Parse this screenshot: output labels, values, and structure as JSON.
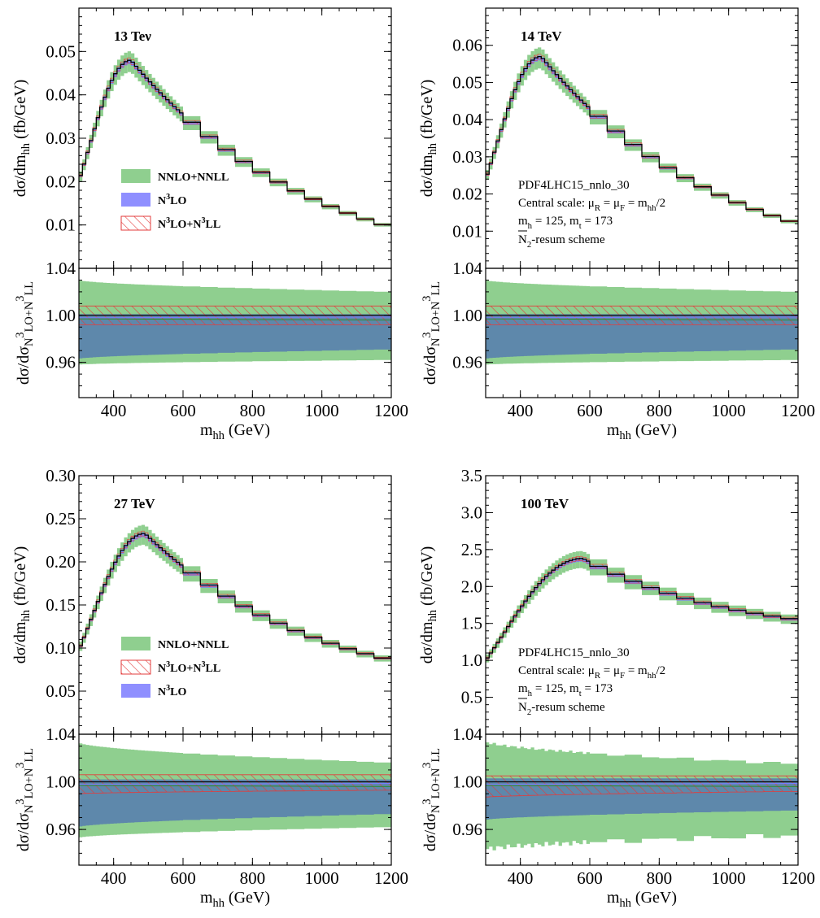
{
  "chart_data": [
    {
      "type": "line",
      "title": "13 Teν",
      "xlabel": "m_hh (GeV)",
      "ylabel": "dσ/dm_hh (fb/GeV)",
      "ratio_ylabel": "dσ/dσ_N3LO+N3LL",
      "xlim": [
        300,
        1200
      ],
      "ylim": [
        0.0,
        0.06
      ],
      "yticks": [
        0.01,
        0.02,
        0.03,
        0.04,
        0.05
      ],
      "ytick_labels": [
        "0.01",
        "0.02",
        "0.03",
        "0.04",
        "0.05"
      ],
      "ratio_ylim": [
        0.93,
        1.04
      ],
      "ratio_yticks": [
        "0.96",
        "1.00",
        "1.04"
      ],
      "xticks": [
        "400",
        "600",
        "800",
        "1000",
        "1200"
      ],
      "x_bins": [
        300,
        310,
        320,
        330,
        340,
        350,
        360,
        370,
        380,
        390,
        400,
        410,
        420,
        430,
        440,
        450,
        460,
        470,
        480,
        490,
        500,
        510,
        520,
        530,
        540,
        550,
        560,
        570,
        580,
        590,
        600,
        650,
        700,
        750,
        800,
        850,
        900,
        950,
        1000,
        1050,
        1100,
        1150,
        1200
      ],
      "peak_x": 450,
      "peak_y": 0.048,
      "end_y": 0.0095,
      "legend": [
        "NNLO+NNLL",
        "N3LO",
        "N3LO+N3LL"
      ],
      "legend_position": "lower-left",
      "info": [],
      "ratio_bands": {
        "nnlo_nnll": [
          0.958,
          1.03,
          0.962,
          1.02
        ],
        "n3lo": [
          0.963,
          1.001,
          0.971,
          1.001
        ],
        "n3lo_n3ll": [
          0.992,
          1.008,
          0.992,
          1.008
        ]
      }
    },
    {
      "type": "line",
      "title": "14 TeV",
      "xlabel": "m_hh (GeV)",
      "ylabel": "dσ/dm_hh (fb/GeV)",
      "ratio_ylabel": "dσ/dσ_N3LO+N3LL",
      "xlim": [
        300,
        1200
      ],
      "ylim": [
        0.0,
        0.07
      ],
      "yticks": [
        0.01,
        0.02,
        0.03,
        0.04,
        0.05,
        0.06
      ],
      "ytick_labels": [
        "0.01",
        "0.02",
        "0.03",
        "0.04",
        "0.05",
        "0.06"
      ],
      "ratio_ylim": [
        0.93,
        1.04
      ],
      "ratio_yticks": [
        "0.96",
        "1.00",
        "1.04"
      ],
      "xticks": [
        "400",
        "600",
        "800",
        "1000",
        "1200"
      ],
      "x_bins": [
        300,
        310,
        320,
        330,
        340,
        350,
        360,
        370,
        380,
        390,
        400,
        410,
        420,
        430,
        440,
        450,
        460,
        470,
        480,
        490,
        500,
        510,
        520,
        530,
        540,
        550,
        560,
        570,
        580,
        590,
        600,
        650,
        700,
        750,
        800,
        850,
        900,
        950,
        1000,
        1050,
        1100,
        1150,
        1200
      ],
      "peak_x": 460,
      "peak_y": 0.057,
      "end_y": 0.012,
      "legend": [],
      "legend_position": "",
      "info": [
        "PDF4LHC15_nnlo_30",
        "Central scale: μR = μF = mhh/2",
        "mh = 125, mt = 173",
        "N2-resum scheme"
      ],
      "ratio_bands": {
        "nnlo_nnll": [
          0.958,
          1.03,
          0.962,
          1.02
        ],
        "n3lo": [
          0.963,
          1.001,
          0.971,
          1.001
        ],
        "n3lo_n3ll": [
          0.992,
          1.008,
          0.992,
          1.008
        ]
      }
    },
    {
      "type": "line",
      "title": "27 TeV",
      "xlabel": "m_hh (GeV)",
      "ylabel": "dσ/dm_hh (fb/GeV)",
      "ratio_ylabel": "dσ/dσ_N3LO+N3LL",
      "xlim": [
        300,
        1200
      ],
      "ylim": [
        0.0,
        0.3
      ],
      "yticks": [
        0.05,
        0.1,
        0.15,
        0.2,
        0.25,
        0.3
      ],
      "ytick_labels": [
        "0.05",
        "0.10",
        "0.15",
        "0.20",
        "0.25",
        "0.30"
      ],
      "ratio_ylim": [
        0.93,
        1.04
      ],
      "ratio_yticks": [
        "0.96",
        "1.00",
        "1.04"
      ],
      "xticks": [
        "400",
        "600",
        "800",
        "1000",
        "1200"
      ],
      "x_bins": [
        300,
        310,
        320,
        330,
        340,
        350,
        360,
        370,
        380,
        390,
        400,
        410,
        420,
        430,
        440,
        450,
        460,
        470,
        480,
        490,
        500,
        510,
        520,
        530,
        540,
        550,
        560,
        570,
        580,
        590,
        600,
        650,
        700,
        750,
        800,
        850,
        900,
        950,
        1000,
        1050,
        1100,
        1150,
        1200
      ],
      "peak_x": 490,
      "peak_y": 0.233,
      "end_y": 0.086,
      "legend": [
        "NNLO+NNLL",
        "N3LO+N3LL",
        "N3LO"
      ],
      "legend_position": "lower-left",
      "info": [],
      "ratio_bands": {
        "nnlo_nnll": [
          0.953,
          1.033,
          0.962,
          1.016
        ],
        "n3lo": [
          0.962,
          1.002,
          0.973,
          1.002
        ],
        "n3lo_n3ll": [
          0.99,
          1.006,
          0.993,
          1.006
        ]
      }
    },
    {
      "type": "line",
      "title": "100 TeV",
      "xlabel": "m_hh (GeV)",
      "ylabel": "dσ/dm_hh (fb/GeV)",
      "ratio_ylabel": "dσ/dσ_N3LO+N3LL",
      "xlim": [
        300,
        1200
      ],
      "ylim": [
        0.0,
        3.5
      ],
      "yticks": [
        0.5,
        1.0,
        1.5,
        2.0,
        2.5,
        3.0,
        3.5
      ],
      "ytick_labels": [
        "0.5",
        "1.0",
        "1.5",
        "2.0",
        "2.5",
        "3.0",
        "3.5"
      ],
      "ratio_ylim": [
        0.93,
        1.04
      ],
      "ratio_yticks": [
        "0.96",
        "1.00",
        "1.04"
      ],
      "xticks": [
        "400",
        "600",
        "800",
        "1000",
        "1200"
      ],
      "x_bins": [
        300,
        310,
        320,
        330,
        340,
        350,
        360,
        370,
        380,
        390,
        400,
        410,
        420,
        430,
        440,
        450,
        460,
        470,
        480,
        490,
        500,
        510,
        520,
        530,
        540,
        550,
        560,
        570,
        580,
        590,
        600,
        650,
        700,
        750,
        800,
        850,
        900,
        950,
        1000,
        1050,
        1100,
        1150,
        1200
      ],
      "peak_x": 580,
      "peak_y": 2.38,
      "end_y": 1.55,
      "legend": [],
      "legend_position": "",
      "info": [
        "PDF4LHC15_nnlo_30",
        "Central scale: μR = μF = mhh/2",
        "mh = 125, mt = 173",
        "N2-resum scheme"
      ],
      "ratio_bands": {
        "nnlo_nnll": [
          0.943,
          1.034,
          0.955,
          1.015
        ],
        "n3lo": [
          0.968,
          1.003,
          0.976,
          1.003
        ],
        "n3lo_n3ll": [
          0.987,
          1.005,
          0.992,
          1.005
        ]
      }
    }
  ],
  "colors": {
    "nnlo_nnll_band": "#8fcf8f",
    "n3lo_band": "#7b7bff",
    "n3lo_n3ll_hatch": "#e33b3b",
    "overlap_band": "#5e88ab",
    "central_line": "#000000"
  }
}
